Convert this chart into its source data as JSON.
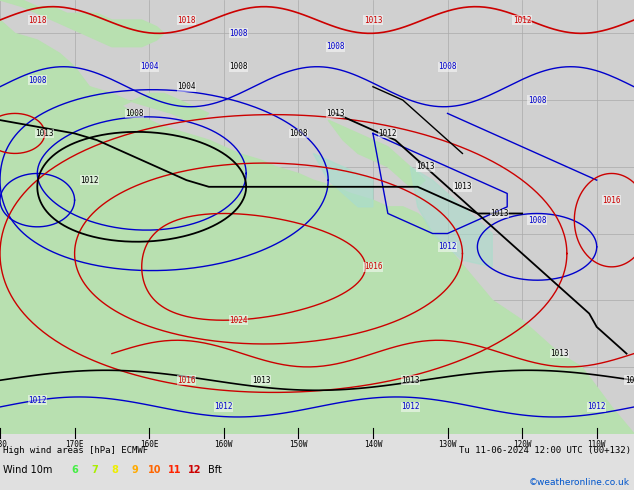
{
  "title_left": "High wind areas [hPa] ECMWF",
  "title_right": "Tu 11-06-2024 12:00 UTC (00+132)",
  "subtitle_left": "Wind 10m",
  "legend_numbers": [
    "6",
    "7",
    "8",
    "9",
    "10",
    "11",
    "12"
  ],
  "legend_colors": [
    "#44ee44",
    "#aaee00",
    "#eeee00",
    "#ffaa00",
    "#ff6600",
    "#ff2200",
    "#cc0000"
  ],
  "copyright": "©weatheronline.co.uk",
  "bg_color": "#d0d0d0",
  "land_color_green": "#b8e0b0",
  "land_color_gray": "#b0b0b0",
  "ocean_color": "#d0d0d0",
  "grid_color": "#aaaaaa",
  "contour_black": "#000000",
  "contour_blue": "#0000cc",
  "contour_red": "#cc0000",
  "contour_green_fill": "#aaddcc",
  "figsize": [
    6.34,
    4.9
  ],
  "dpi": 100,
  "bottom_bar_color": "#e0e0e0",
  "map_xlim": [
    -180,
    -95
  ],
  "map_ylim": [
    10,
    75
  ]
}
